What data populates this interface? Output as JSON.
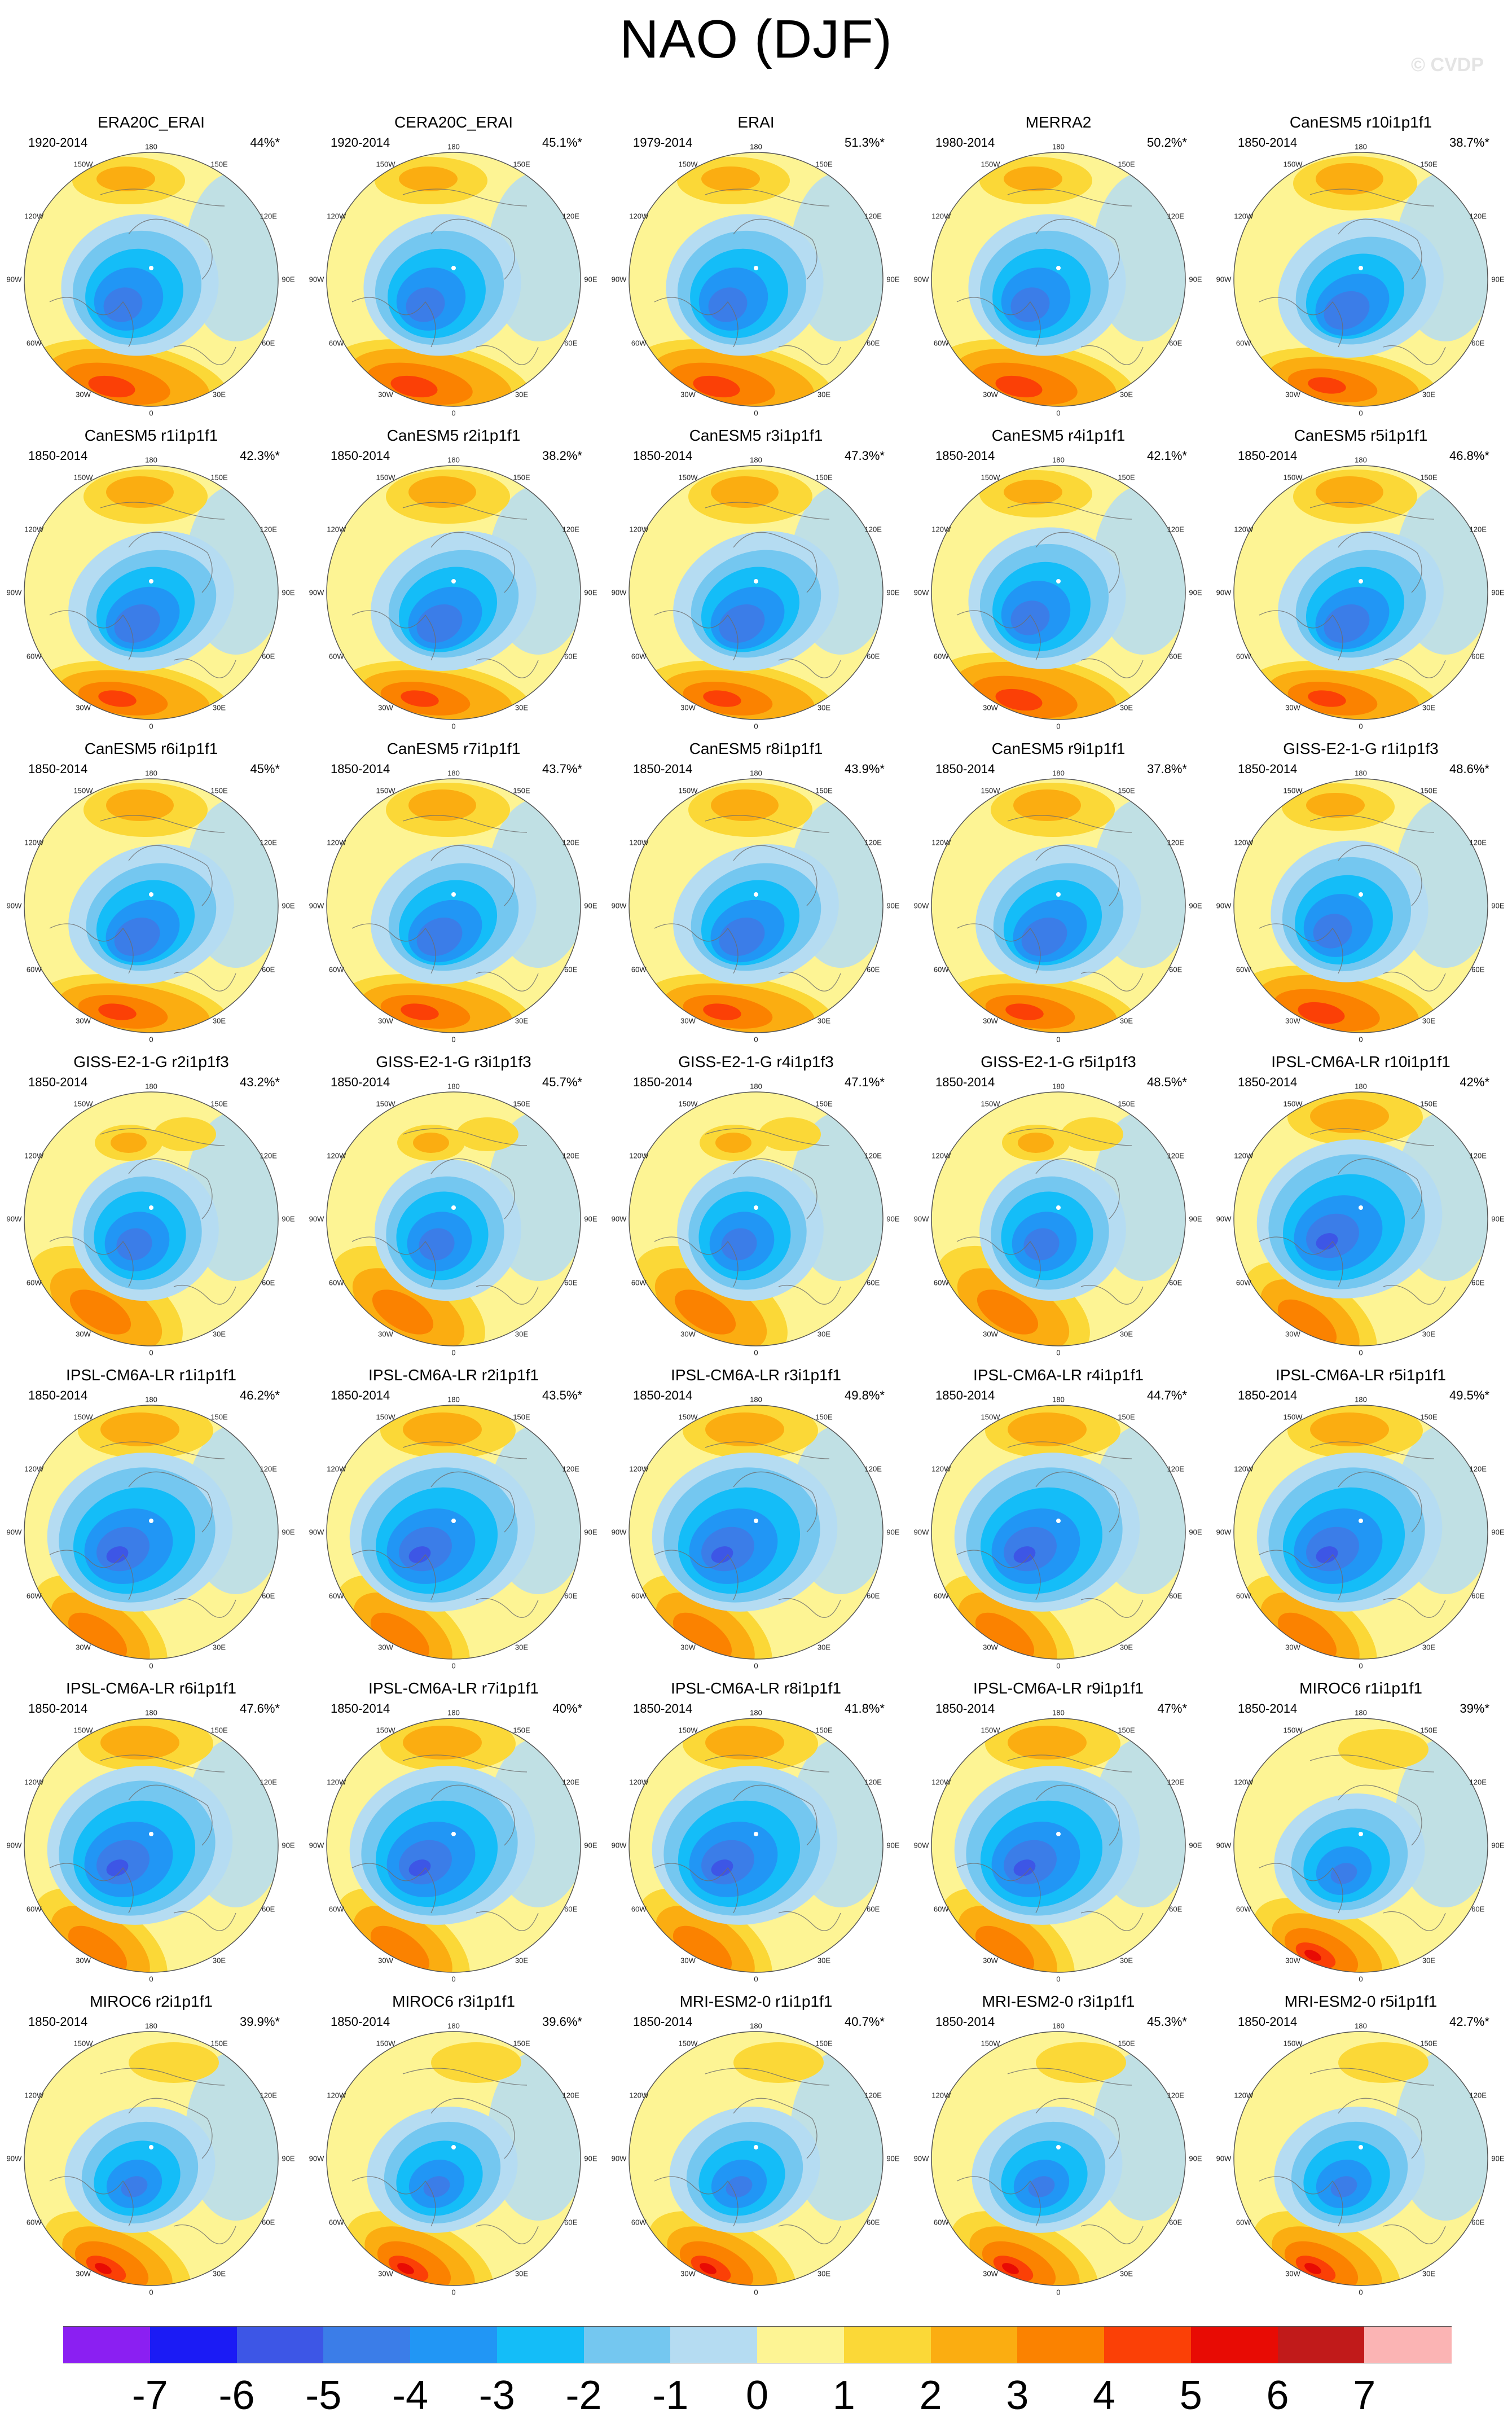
{
  "title": "NAO (DJF)",
  "watermark": "© CVDP",
  "grid_labels": {
    "top": "180",
    "upper_left": "150W",
    "upper_right": "150E",
    "left_upper": "120W",
    "right_upper": "120E",
    "left": "90W",
    "right": "90E",
    "left_lower": "60W",
    "right_lower": "60E",
    "lower_left": "30W",
    "lower_right": "30E",
    "bottom": "0"
  },
  "panels": [
    {
      "name": "ERA20C_ERAI",
      "period": "1920-2014",
      "pct": "44%*",
      "style": 1
    },
    {
      "name": "CERA20C_ERAI",
      "period": "1920-2014",
      "pct": "45.1%*",
      "style": 1
    },
    {
      "name": "ERAI",
      "period": "1979-2014",
      "pct": "51.3%*",
      "style": 1
    },
    {
      "name": "MERRA2",
      "period": "1980-2014",
      "pct": "50.2%*",
      "style": 1
    },
    {
      "name": "CanESM5 r10i1p1f1",
      "period": "1850-2014",
      "pct": "38.7%*",
      "style": 0
    },
    {
      "name": "CanESM5 r1i1p1f1",
      "period": "1850-2014",
      "pct": "42.3%*",
      "style": 0
    },
    {
      "name": "CanESM5 r2i1p1f1",
      "period": "1850-2014",
      "pct": "38.2%*",
      "style": 0
    },
    {
      "name": "CanESM5 r3i1p1f1",
      "period": "1850-2014",
      "pct": "47.3%*",
      "style": 0
    },
    {
      "name": "CanESM5 r4i1p1f1",
      "period": "1850-2014",
      "pct": "42.1%*",
      "style": 1
    },
    {
      "name": "CanESM5 r5i1p1f1",
      "period": "1850-2014",
      "pct": "46.8%*",
      "style": 0
    },
    {
      "name": "CanESM5 r6i1p1f1",
      "period": "1850-2014",
      "pct": "45%*",
      "style": 0
    },
    {
      "name": "CanESM5 r7i1p1f1",
      "period": "1850-2014",
      "pct": "43.7%*",
      "style": 0
    },
    {
      "name": "CanESM5 r8i1p1f1",
      "period": "1850-2014",
      "pct": "43.9%*",
      "style": 0
    },
    {
      "name": "CanESM5 r9i1p1f1",
      "period": "1850-2014",
      "pct": "37.8%*",
      "style": 0
    },
    {
      "name": "GISS-E2-1-G r1i1p1f3",
      "period": "1850-2014",
      "pct": "48.6%*",
      "style": 1
    },
    {
      "name": "GISS-E2-1-G r2i1p1f3",
      "period": "1850-2014",
      "pct": "43.2%*",
      "style": 2
    },
    {
      "name": "GISS-E2-1-G r3i1p1f3",
      "period": "1850-2014",
      "pct": "45.7%*",
      "style": 2
    },
    {
      "name": "GISS-E2-1-G r4i1p1f3",
      "period": "1850-2014",
      "pct": "47.1%*",
      "style": 2
    },
    {
      "name": "GISS-E2-1-G r5i1p1f3",
      "period": "1850-2014",
      "pct": "48.5%*",
      "style": 2
    },
    {
      "name": "IPSL-CM6A-LR r10i1p1f1",
      "period": "1850-2014",
      "pct": "42%*",
      "style": 3
    },
    {
      "name": "IPSL-CM6A-LR r1i1p1f1",
      "period": "1850-2014",
      "pct": "46.2%*",
      "style": 3
    },
    {
      "name": "IPSL-CM6A-LR r2i1p1f1",
      "period": "1850-2014",
      "pct": "43.5%*",
      "style": 3
    },
    {
      "name": "IPSL-CM6A-LR r3i1p1f1",
      "period": "1850-2014",
      "pct": "49.8%*",
      "style": 3
    },
    {
      "name": "IPSL-CM6A-LR r4i1p1f1",
      "period": "1850-2014",
      "pct": "44.7%*",
      "style": 3
    },
    {
      "name": "IPSL-CM6A-LR r5i1p1f1",
      "period": "1850-2014",
      "pct": "49.5%*",
      "style": 3
    },
    {
      "name": "IPSL-CM6A-LR r6i1p1f1",
      "period": "1850-2014",
      "pct": "47.6%*",
      "style": 3
    },
    {
      "name": "IPSL-CM6A-LR r7i1p1f1",
      "period": "1850-2014",
      "pct": "40%*",
      "style": 3
    },
    {
      "name": "IPSL-CM6A-LR r8i1p1f1",
      "period": "1850-2014",
      "pct": "41.8%*",
      "style": 3
    },
    {
      "name": "IPSL-CM6A-LR r9i1p1f1",
      "period": "1850-2014",
      "pct": "47%*",
      "style": 3
    },
    {
      "name": "MIROC6 r1i1p1f1",
      "period": "1850-2014",
      "pct": "39%*",
      "style": 4
    },
    {
      "name": "MIROC6 r2i1p1f1",
      "period": "1850-2014",
      "pct": "39.9%*",
      "style": 4
    },
    {
      "name": "MIROC6 r3i1p1f1",
      "period": "1850-2014",
      "pct": "39.6%*",
      "style": 4
    },
    {
      "name": "MRI-ESM2-0 r1i1p1f1",
      "period": "1850-2014",
      "pct": "40.7%*",
      "style": 4
    },
    {
      "name": "MRI-ESM2-0 r3i1p1f1",
      "period": "1850-2014",
      "pct": "45.3%*",
      "style": 4
    },
    {
      "name": "MRI-ESM2-0 r5i1p1f1",
      "period": "1850-2014",
      "pct": "42.7%*",
      "style": 4
    }
  ],
  "colorbar": {
    "colors": [
      "#8b1ff2",
      "#1b1bf5",
      "#3d56e6",
      "#3b7de8",
      "#2196f5",
      "#14bdf8",
      "#74c7f0",
      "#b5dcf2",
      "#fdf494",
      "#fbd837",
      "#fbad11",
      "#fb8200",
      "#fb4006",
      "#e80b04",
      "#c11a1a",
      "#fbb4b4"
    ],
    "ticks": [
      "-7",
      "-6",
      "-5",
      "-4",
      "-3",
      "-2",
      "-1",
      "0",
      "1",
      "2",
      "3",
      "4",
      "5",
      "6",
      "7"
    ]
  }
}
